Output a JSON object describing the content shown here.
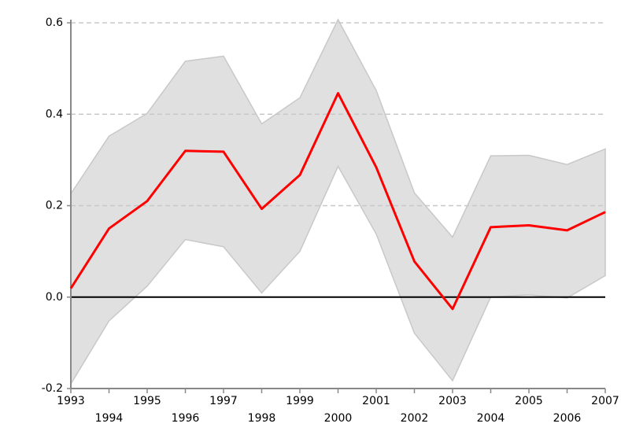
{
  "chart_data": {
    "type": "line-band",
    "x": [
      1993,
      1994,
      1995,
      1996,
      1997,
      1998,
      1999,
      2000,
      2001,
      2002,
      2003,
      2004,
      2005,
      2006,
      2007
    ],
    "values": [
      0.019,
      0.15,
      0.21,
      0.32,
      0.318,
      0.193,
      0.267,
      0.446,
      0.284,
      0.078,
      -0.026,
      0.153,
      0.157,
      0.146,
      0.186
    ],
    "upper": [
      0.226,
      0.352,
      0.402,
      0.516,
      0.527,
      0.379,
      0.436,
      0.607,
      0.452,
      0.228,
      0.131,
      0.309,
      0.31,
      0.29,
      0.324
    ],
    "lower": [
      -0.19,
      -0.052,
      0.024,
      0.126,
      0.11,
      0.009,
      0.1,
      0.286,
      0.138,
      -0.079,
      -0.183,
      0.0,
      0.005,
      -0.002,
      0.047
    ],
    "color": "#ff0000",
    "band_color": "#e0e0e0",
    "band_edge_color": "#c8c8c8",
    "xlim": [
      1993,
      2007
    ],
    "xticks": [
      1993,
      1994,
      1995,
      1996,
      1997,
      1998,
      1999,
      2000,
      2001,
      2002,
      2003,
      2004,
      2005,
      2006,
      2007
    ],
    "ylim": [
      -0.2,
      0.6
    ],
    "yticks": [
      -0.2,
      {
        "value": 0,
        "label": "0.0"
      },
      0.2,
      0.4,
      0.6
    ],
    "grid": true
  }
}
